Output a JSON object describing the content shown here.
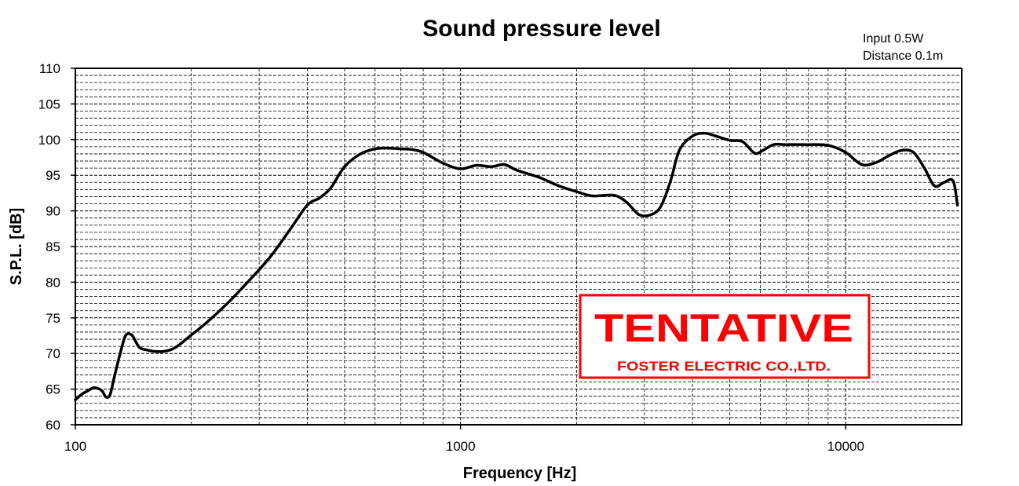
{
  "chart_data": {
    "type": "line",
    "title": "Sound pressure level",
    "xlabel": "Frequency [Hz]",
    "ylabel": "S.P.L. [dB]",
    "x_scale": "log",
    "xlim": [
      100,
      20000
    ],
    "ylim": [
      60,
      110
    ],
    "grid": true,
    "annotations": [
      "Input 0.5W",
      "Distance 0.1m"
    ],
    "x_ticks": [
      "100",
      "1000",
      "10000"
    ],
    "y_ticks": [
      "60",
      "65",
      "70",
      "75",
      "80",
      "85",
      "90",
      "95",
      "100",
      "105",
      "110"
    ],
    "series": [
      {
        "x": [
          100,
          104,
          108,
          112,
          117,
          120,
          123,
          126,
          130,
          135,
          140,
          143,
          147,
          153,
          160,
          170,
          180,
          190,
          200,
          220,
          250,
          280,
          320,
          360,
          400,
          430,
          460,
          500,
          550,
          600,
          650,
          700,
          750,
          800,
          900,
          1000,
          1100,
          1200,
          1300,
          1400,
          1600,
          1800,
          2000,
          2200,
          2500,
          2700,
          2900,
          3100,
          3300,
          3500,
          3700,
          4000,
          4300,
          4600,
          5000,
          5400,
          5800,
          6100,
          6500,
          7000,
          8000,
          9000,
          10000,
          11000,
          12000,
          13000,
          14000,
          15000,
          16000,
          17000,
          18000,
          19000,
          19500
        ],
        "values": [
          63.5,
          64.3,
          64.8,
          65.2,
          64.8,
          63.9,
          64.2,
          66.5,
          69.5,
          72.5,
          72.6,
          71.8,
          70.8,
          70.5,
          70.3,
          70.3,
          70.7,
          71.6,
          72.6,
          74.4,
          77.2,
          80.0,
          83.5,
          87.3,
          90.8,
          91.8,
          93.2,
          96.2,
          98.0,
          98.7,
          98.8,
          98.7,
          98.6,
          98.2,
          96.7,
          95.9,
          96.4,
          96.2,
          96.5,
          95.7,
          94.7,
          93.5,
          92.7,
          92.1,
          92.2,
          91.2,
          89.5,
          89.4,
          90.5,
          94.0,
          98.5,
          100.5,
          100.9,
          100.5,
          99.9,
          99.7,
          98.1,
          98.5,
          99.3,
          99.3,
          99.3,
          99.2,
          98.2,
          96.5,
          96.8,
          97.8,
          98.5,
          98.2,
          96.0,
          93.5,
          94.0,
          94.2,
          90.8
        ]
      }
    ]
  },
  "stamp": {
    "main_text": "TENTATIVE",
    "sub_text": "FOSTER ELECTRIC CO.,LTD."
  }
}
